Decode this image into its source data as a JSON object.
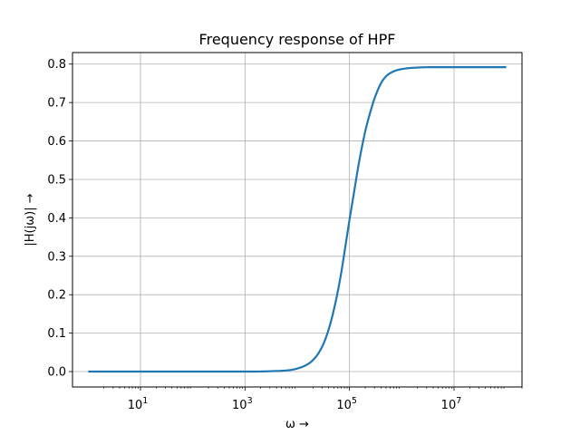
{
  "chart_data": {
    "type": "line",
    "title": "Frequency response of HPF",
    "xlabel": "ω →",
    "ylabel": "|H(jω)| →",
    "xscale": "log",
    "xlim": [
      0.5,
      200000000
    ],
    "ylim": [
      -0.04,
      0.83
    ],
    "grid": true,
    "legend": "none",
    "color": "#1f77b4",
    "xticks": [
      {
        "value": 10,
        "base": "10",
        "exp": "1"
      },
      {
        "value": 1000,
        "base": "10",
        "exp": "3"
      },
      {
        "value": 100000,
        "base": "10",
        "exp": "5"
      },
      {
        "value": 10000000,
        "base": "10",
        "exp": "7"
      }
    ],
    "yticks": [
      {
        "value": 0.0,
        "label": "0.0"
      },
      {
        "value": 0.1,
        "label": "0.1"
      },
      {
        "value": 0.2,
        "label": "0.2"
      },
      {
        "value": 0.3,
        "label": "0.3"
      },
      {
        "value": 0.4,
        "label": "0.4"
      },
      {
        "value": 0.5,
        "label": "0.5"
      },
      {
        "value": 0.6,
        "label": "0.6"
      },
      {
        "value": 0.7,
        "label": "0.7"
      },
      {
        "value": 0.8,
        "label": "0.8"
      }
    ],
    "series": [
      {
        "x": [
          1,
          1000,
          3000,
          10000,
          20000,
          30000,
          40000,
          50000,
          60000,
          70000,
          80000,
          100000,
          120000,
          150000,
          200000,
          250000,
          300000,
          400000,
          500000,
          700000,
          1000000,
          2000000,
          5000000,
          10000000,
          100000000
        ],
        "values": [
          0.0,
          0.0,
          0.001,
          0.008,
          0.03,
          0.065,
          0.11,
          0.16,
          0.21,
          0.26,
          0.31,
          0.395,
          0.46,
          0.54,
          0.625,
          0.675,
          0.71,
          0.75,
          0.768,
          0.781,
          0.787,
          0.791,
          0.792,
          0.792,
          0.792
        ]
      }
    ]
  }
}
